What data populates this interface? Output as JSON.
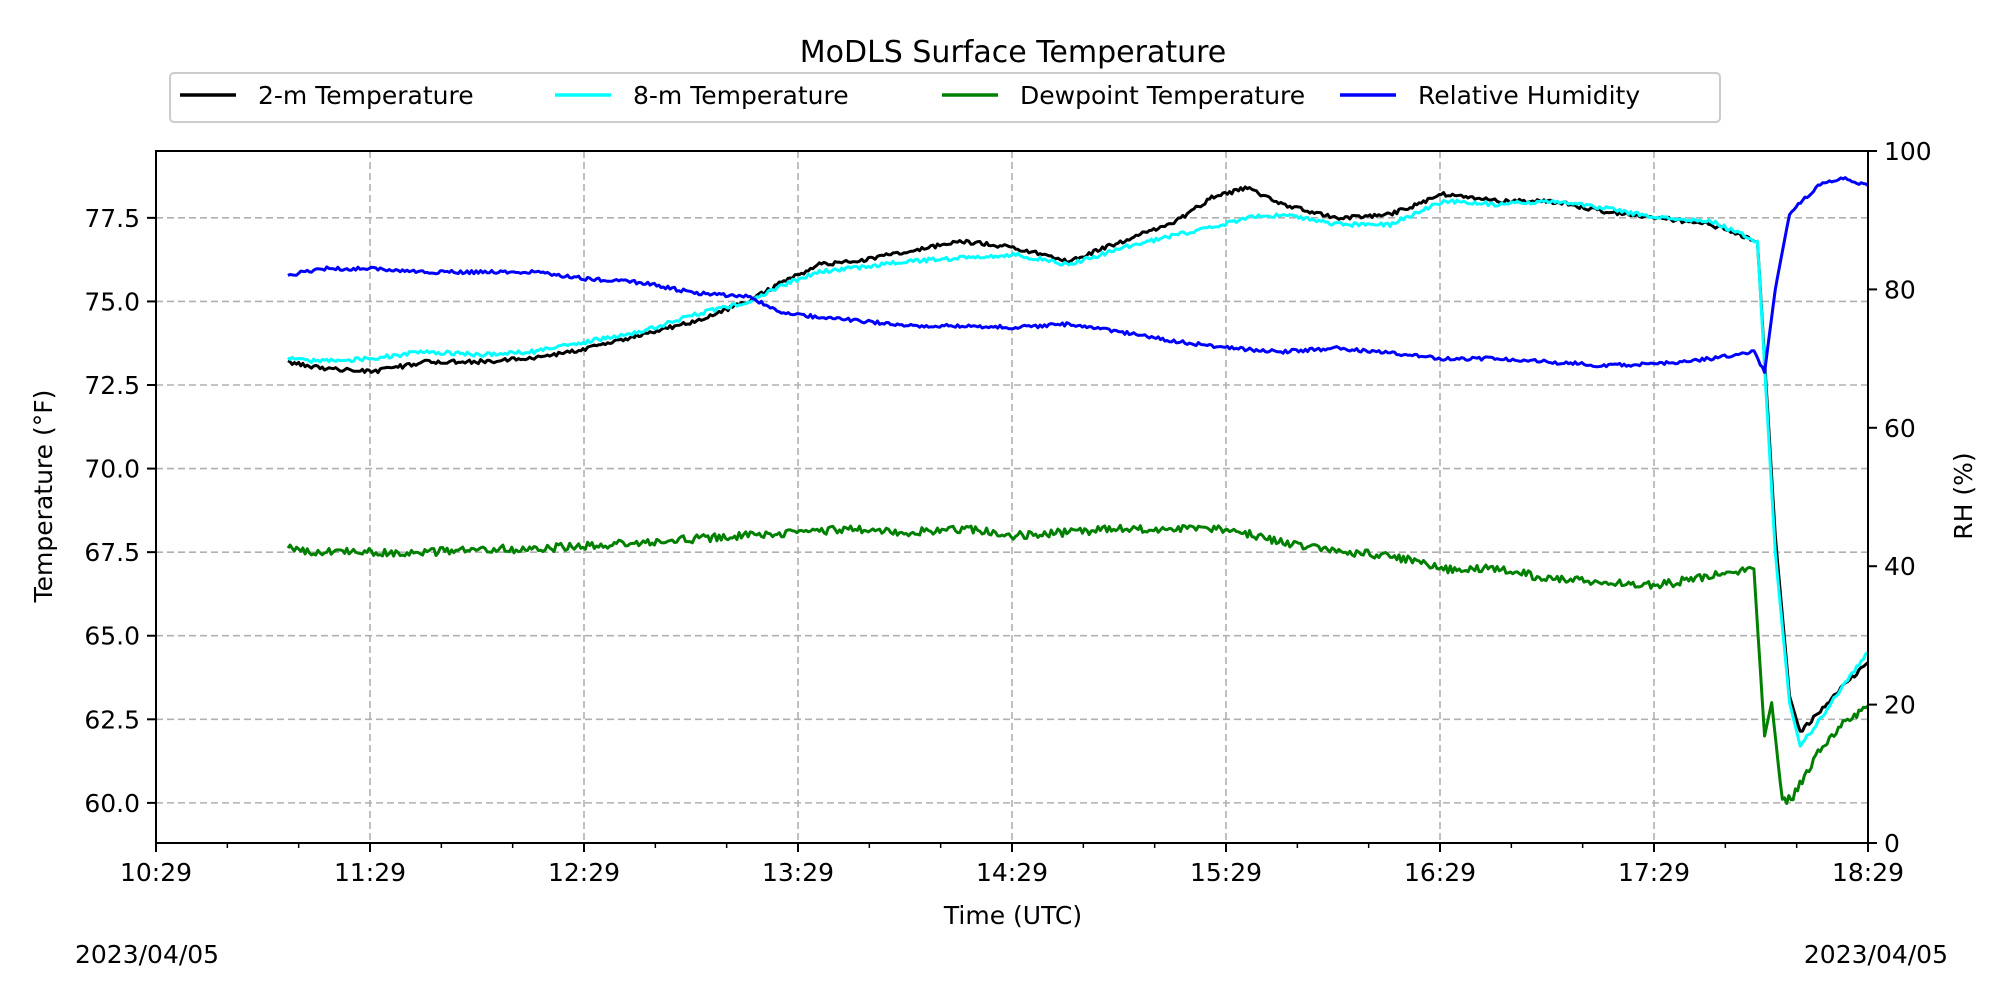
{
  "chart_data": {
    "type": "line",
    "title": "MoDLS Surface Temperature",
    "xlabel": "Time (UTC)",
    "ylabel": "Temperature ($^\\circ$F)",
    "ylabel_display": "Temperature (°F)",
    "y2label": "RH (%)",
    "x_tick_labels": [
      "10:29",
      "11:29",
      "12:29",
      "13:29",
      "14:29",
      "15:29",
      "16:29",
      "17:29",
      "18:29"
    ],
    "x_range": [
      "10:29",
      "18:29"
    ],
    "ylim": [
      58.8,
      79.5
    ],
    "y_ticks": [
      "60.0",
      "62.5",
      "65.0",
      "67.5",
      "70.0",
      "72.5",
      "75.0",
      "77.5"
    ],
    "y2lim": [
      0,
      100
    ],
    "y2_ticks": [
      "0",
      "20",
      "40",
      "60",
      "80",
      "100"
    ],
    "grid": true,
    "legend_position": "top-center",
    "date_left": "2023/04/05",
    "date_right": "2023/04/05",
    "series": [
      {
        "name": "2-m Temperature",
        "color": "#000000",
        "axis": "left",
        "points": [
          [
            "11:06",
            73.2
          ],
          [
            "11:15",
            73.0
          ],
          [
            "11:30",
            72.9
          ],
          [
            "11:45",
            73.2
          ],
          [
            "12:00",
            73.2
          ],
          [
            "12:15",
            73.3
          ],
          [
            "12:30",
            73.6
          ],
          [
            "12:45",
            74.0
          ],
          [
            "13:00",
            74.4
          ],
          [
            "13:15",
            75.0
          ],
          [
            "13:25",
            75.6
          ],
          [
            "13:35",
            76.1
          ],
          [
            "13:45",
            76.2
          ],
          [
            "14:00",
            76.5
          ],
          [
            "14:15",
            76.8
          ],
          [
            "14:30",
            76.6
          ],
          [
            "14:45",
            76.2
          ],
          [
            "15:00",
            76.8
          ],
          [
            "15:15",
            77.4
          ],
          [
            "15:25",
            78.1
          ],
          [
            "15:35",
            78.4
          ],
          [
            "15:45",
            77.9
          ],
          [
            "16:00",
            77.5
          ],
          [
            "16:15",
            77.6
          ],
          [
            "16:30",
            78.2
          ],
          [
            "16:45",
            78.0
          ],
          [
            "17:00",
            78.0
          ],
          [
            "17:15",
            77.7
          ],
          [
            "17:30",
            77.5
          ],
          [
            "17:45",
            77.3
          ],
          [
            "17:58",
            76.8
          ],
          [
            "18:03",
            68.0
          ],
          [
            "18:07",
            63.2
          ],
          [
            "18:10",
            62.1
          ],
          [
            "18:15",
            62.7
          ],
          [
            "18:22",
            63.5
          ],
          [
            "18:29",
            64.2
          ]
        ]
      },
      {
        "name": "8-m Temperature",
        "color": "#00ffff",
        "axis": "left",
        "points": [
          [
            "11:06",
            73.3
          ],
          [
            "11:15",
            73.2
          ],
          [
            "11:30",
            73.3
          ],
          [
            "11:45",
            73.5
          ],
          [
            "12:00",
            73.4
          ],
          [
            "12:15",
            73.5
          ],
          [
            "12:30",
            73.8
          ],
          [
            "12:45",
            74.1
          ],
          [
            "13:00",
            74.6
          ],
          [
            "13:15",
            75.0
          ],
          [
            "13:25",
            75.5
          ],
          [
            "13:35",
            75.9
          ],
          [
            "13:45",
            76.0
          ],
          [
            "14:00",
            76.2
          ],
          [
            "14:15",
            76.3
          ],
          [
            "14:30",
            76.4
          ],
          [
            "14:45",
            76.1
          ],
          [
            "15:00",
            76.6
          ],
          [
            "15:15",
            77.0
          ],
          [
            "15:25",
            77.2
          ],
          [
            "15:35",
            77.5
          ],
          [
            "15:45",
            77.6
          ],
          [
            "16:00",
            77.3
          ],
          [
            "16:15",
            77.3
          ],
          [
            "16:30",
            78.0
          ],
          [
            "16:45",
            77.9
          ],
          [
            "17:00",
            78.0
          ],
          [
            "17:15",
            77.8
          ],
          [
            "17:30",
            77.5
          ],
          [
            "17:45",
            77.4
          ],
          [
            "17:58",
            76.8
          ],
          [
            "18:03",
            67.5
          ],
          [
            "18:07",
            63.0
          ],
          [
            "18:10",
            61.7
          ],
          [
            "18:15",
            62.4
          ],
          [
            "18:22",
            63.5
          ],
          [
            "18:29",
            64.5
          ]
        ]
      },
      {
        "name": "Dewpoint Temperature",
        "color": "#008000",
        "axis": "left",
        "points": [
          [
            "11:06",
            67.6
          ],
          [
            "11:15",
            67.5
          ],
          [
            "11:30",
            67.5
          ],
          [
            "11:45",
            67.5
          ],
          [
            "12:00",
            67.6
          ],
          [
            "12:15",
            67.6
          ],
          [
            "12:30",
            67.7
          ],
          [
            "12:45",
            67.8
          ],
          [
            "13:00",
            67.9
          ],
          [
            "13:15",
            68.0
          ],
          [
            "13:30",
            68.1
          ],
          [
            "13:45",
            68.2
          ],
          [
            "14:00",
            68.1
          ],
          [
            "14:15",
            68.2
          ],
          [
            "14:30",
            68.0
          ],
          [
            "14:45",
            68.1
          ],
          [
            "15:00",
            68.2
          ],
          [
            "15:15",
            68.2
          ],
          [
            "15:30",
            68.2
          ],
          [
            "15:45",
            67.8
          ],
          [
            "16:00",
            67.5
          ],
          [
            "16:15",
            67.4
          ],
          [
            "16:30",
            67.0
          ],
          [
            "16:45",
            67.0
          ],
          [
            "17:00",
            66.7
          ],
          [
            "17:15",
            66.6
          ],
          [
            "17:30",
            66.5
          ],
          [
            "17:45",
            66.8
          ],
          [
            "17:57",
            67.0
          ],
          [
            "18:00",
            62.0
          ],
          [
            "18:02",
            63.0
          ],
          [
            "18:05",
            60.0
          ],
          [
            "18:08",
            60.2
          ],
          [
            "18:15",
            61.5
          ],
          [
            "18:22",
            62.4
          ],
          [
            "18:29",
            62.9
          ]
        ]
      },
      {
        "name": "Relative Humidity",
        "color": "#0000ff",
        "axis": "right",
        "points": [
          [
            "11:06",
            82
          ],
          [
            "11:15",
            83
          ],
          [
            "11:30",
            83
          ],
          [
            "11:45",
            82.5
          ],
          [
            "12:00",
            82.5
          ],
          [
            "12:15",
            82.5
          ],
          [
            "12:30",
            81.5
          ],
          [
            "12:45",
            81
          ],
          [
            "13:00",
            79.5
          ],
          [
            "13:15",
            79
          ],
          [
            "13:25",
            76.5
          ],
          [
            "13:45",
            75.5
          ],
          [
            "14:00",
            74.8
          ],
          [
            "14:15",
            74.7
          ],
          [
            "14:30",
            74.5
          ],
          [
            "14:45",
            75
          ],
          [
            "15:00",
            73.8
          ],
          [
            "15:15",
            72.5
          ],
          [
            "15:30",
            71.5
          ],
          [
            "15:45",
            71
          ],
          [
            "16:00",
            71.5
          ],
          [
            "16:15",
            70.8
          ],
          [
            "16:30",
            70
          ],
          [
            "16:45",
            70
          ],
          [
            "17:00",
            69.5
          ],
          [
            "17:15",
            69
          ],
          [
            "17:30",
            69.2
          ],
          [
            "17:45",
            70
          ],
          [
            "17:57",
            71
          ],
          [
            "18:00",
            68
          ],
          [
            "18:03",
            80
          ],
          [
            "18:07",
            91
          ],
          [
            "18:15",
            95
          ],
          [
            "18:22",
            96
          ],
          [
            "18:29",
            95
          ]
        ]
      }
    ]
  }
}
